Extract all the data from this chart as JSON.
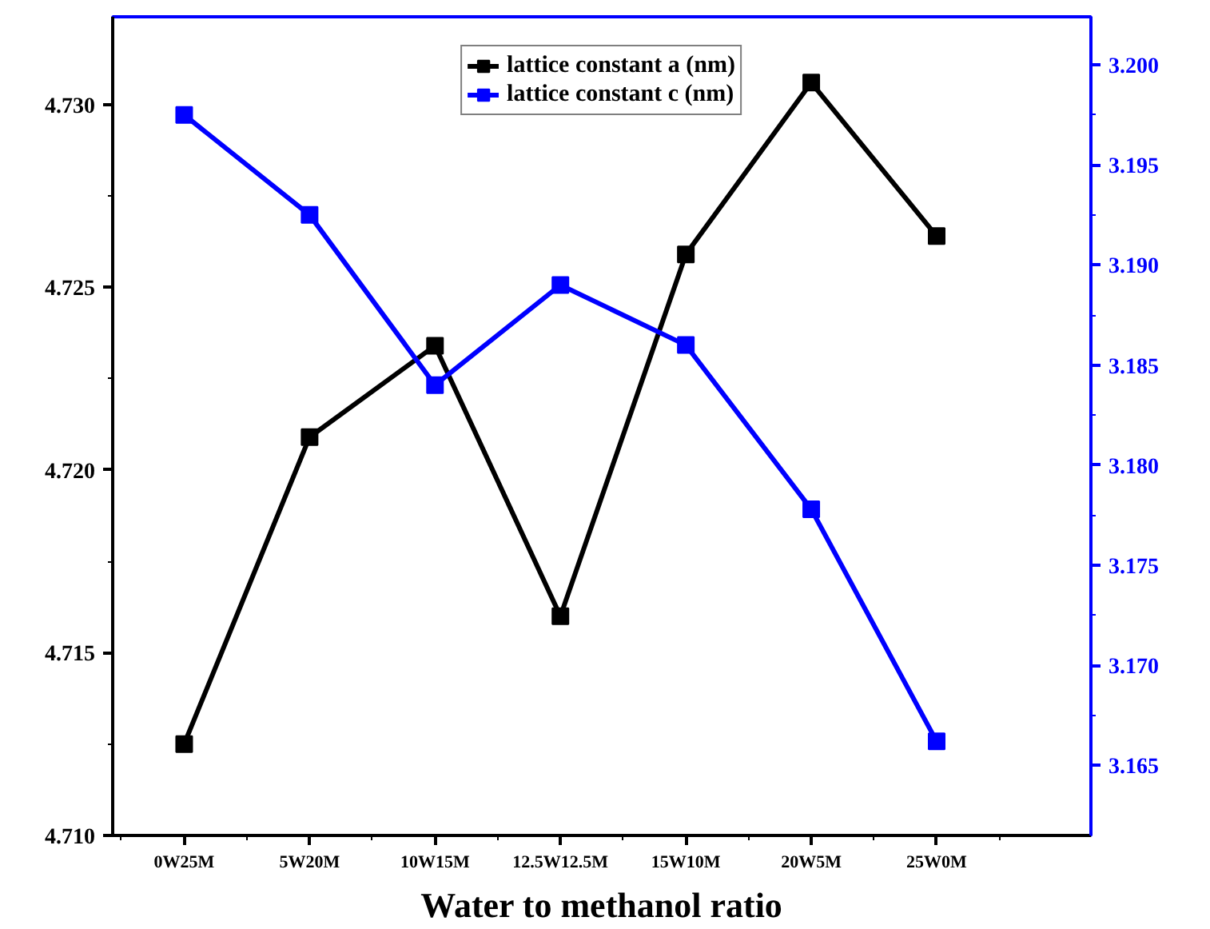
{
  "chart_data": {
    "type": "line",
    "xlabel": "Water to methanol ratio",
    "categories": [
      "0W25M",
      "5W20M",
      "10W15M",
      "12.5W12.5M",
      "15W10M",
      "20W5M",
      "25W0M"
    ],
    "series": [
      {
        "name": "lattice constant a (nm)",
        "color": "#000000",
        "values": [
          4.7125,
          4.7209,
          4.7234,
          4.716,
          4.7259,
          4.7306,
          4.7264
        ]
      },
      {
        "name": "lattice constant c (nm)",
        "color": "#0000ff",
        "axis": "y2",
        "values": [
          3.1975,
          3.1925,
          3.184,
          3.189,
          3.186,
          3.1778,
          3.1662
        ]
      }
    ],
    "ylim": [
      4.71,
      4.7324
    ],
    "yticks": [
      {
        "value": 4.71,
        "label": "4.710"
      },
      4.715,
      {
        "value": 4.72,
        "label": "4.720"
      },
      4.725,
      {
        "value": 4.73,
        "label": "4.730"
      }
    ],
    "y2lim": [
      3.1615,
      3.2024
    ],
    "y2ticks": [
      3.165,
      {
        "value": 3.17,
        "label": "3.170"
      },
      3.175,
      {
        "value": 3.18,
        "label": "3.180"
      },
      3.185,
      {
        "value": 3.19,
        "label": "3.190"
      },
      3.195,
      {
        "value": 3.2,
        "label": "3.200"
      }
    ],
    "grid": false,
    "legend": "top",
    "marker": "square",
    "line_style": "solid"
  }
}
